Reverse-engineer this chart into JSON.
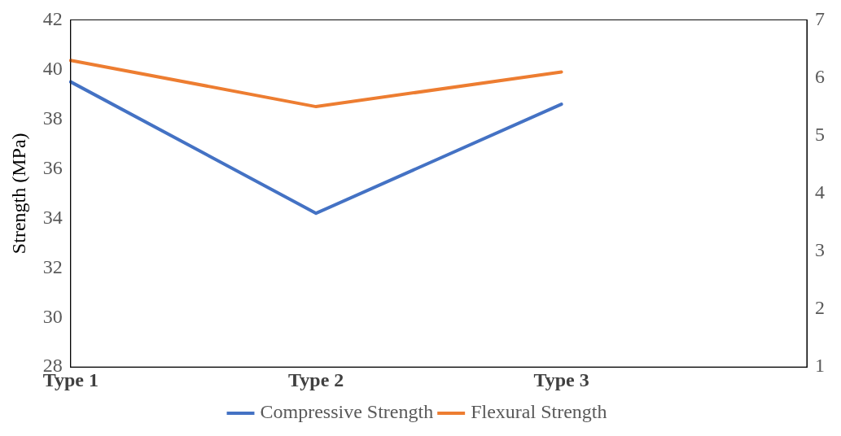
{
  "chart_data": {
    "type": "line",
    "ylabel": "Strength (MPa)",
    "categories": [
      "Type 1",
      "Type 2",
      "Type 3",
      null
    ],
    "series": [
      {
        "name": "Compressive Strength",
        "color": "#4472c4",
        "values": [
          39.5,
          34.2,
          38.6,
          null
        ]
      },
      {
        "name": "Flexural Strength",
        "color": "#ed7d31",
        "values": [
          6.3,
          5.5,
          6.1,
          null
        ],
        "axis": "y2"
      }
    ],
    "ylim": [
      28,
      42
    ],
    "yticks": [
      28,
      30,
      32,
      34,
      36,
      38,
      40,
      42
    ],
    "y2lim": [
      1,
      7
    ],
    "y2ticks": [
      1,
      2,
      3,
      4,
      5,
      6,
      7
    ],
    "grid": false,
    "legend": "bottom",
    "marker": "none",
    "line_style": "solid"
  }
}
